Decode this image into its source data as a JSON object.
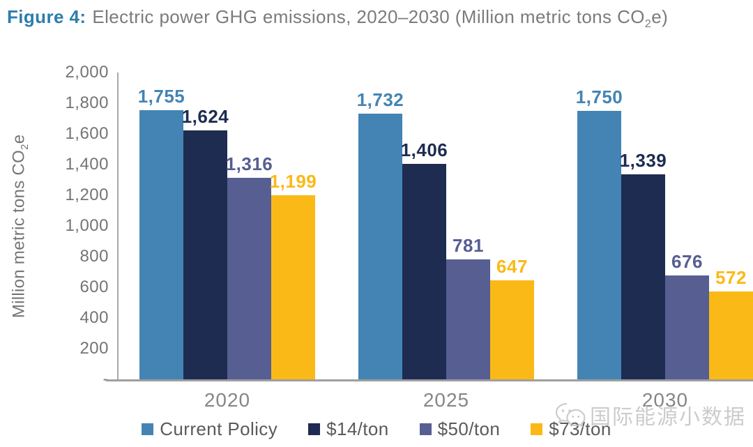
{
  "title": {
    "prefix": "Figure 4:",
    "main": "Electric power GHG emissions, 2020–2030 (Million metric tons CO",
    "sub": "2",
    "end": "e)"
  },
  "y_axis": {
    "label_main": "Million metric tons CO",
    "label_sub": "2",
    "label_end": "e"
  },
  "watermark": {
    "icon": "wechat-icon",
    "text": "国际能源小数据"
  },
  "colors": {
    "title_accent": "#2e7dab",
    "title_text": "#7b7b7b",
    "axis_line": "#a9a9a9",
    "tick_text": "#747474",
    "x_label_text": "#868686",
    "legend_text": "#5a5a5a"
  },
  "chart_data": {
    "type": "bar",
    "title": "Figure 4: Electric power GHG emissions, 2020–2030 (Million metric tons CO2e)",
    "xlabel": "",
    "ylabel": "Million metric tons CO2e",
    "ylim": [
      0,
      2000
    ],
    "grid": false,
    "legend_position": "bottom",
    "categories": [
      "2020",
      "2025",
      "2030"
    ],
    "series": [
      {
        "name": "Current Policy",
        "color": "#4384b4",
        "values": [
          1755,
          1732,
          1750
        ],
        "labels": [
          "1,755",
          "1,732",
          "1,750"
        ]
      },
      {
        "name": "$14/ton",
        "color": "#1d2c50",
        "values": [
          1624,
          1406,
          1339
        ],
        "labels": [
          "1,624",
          "1,406",
          "1,339"
        ]
      },
      {
        "name": "$50/ton",
        "color": "#565e92",
        "values": [
          1316,
          781,
          676
        ],
        "labels": [
          "1,316",
          "781",
          "676"
        ]
      },
      {
        "name": "$73/ton",
        "color": "#fbb917",
        "values": [
          1199,
          647,
          572
        ],
        "labels": [
          "1,199",
          "647",
          "572"
        ]
      }
    ],
    "yticks": [
      {
        "value": 2000,
        "label": "2,000"
      },
      {
        "value": 1800,
        "label": "1,800"
      },
      {
        "value": 1600,
        "label": "1,600"
      },
      {
        "value": 1400,
        "label": "1,400"
      },
      {
        "value": 1200,
        "label": "1,200"
      },
      {
        "value": 1000,
        "label": "1,000"
      },
      {
        "value": 800,
        "label": "800"
      },
      {
        "value": 600,
        "label": "600"
      },
      {
        "value": 400,
        "label": "400"
      },
      {
        "value": 200,
        "label": "200"
      },
      {
        "value": 0,
        "label": "-"
      }
    ]
  }
}
